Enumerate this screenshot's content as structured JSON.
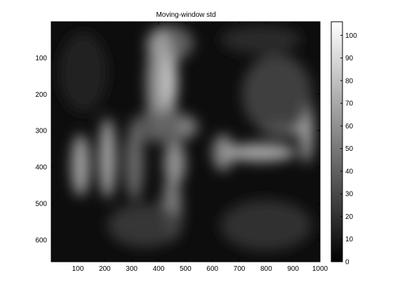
{
  "chart_data": {
    "type": "heatmap",
    "title": "Moving-window std",
    "colormap": "gray",
    "x_axis": {
      "range": [
        1,
        1000
      ],
      "ticks": [
        100,
        200,
        300,
        400,
        500,
        600,
        700,
        800,
        900,
        1000
      ],
      "grid": false
    },
    "y_axis": {
      "range": [
        1,
        660
      ],
      "reversed": true,
      "ticks": [
        100,
        200,
        300,
        400,
        500,
        600
      ],
      "grid": false
    },
    "colorbar": {
      "range": [
        0,
        106
      ],
      "ticks": [
        0,
        10,
        20,
        30,
        40,
        50,
        60,
        70,
        80,
        90,
        100
      ],
      "placement": "right"
    },
    "features": [
      {
        "kind": "ellipse",
        "cx": 440,
        "cy": 60,
        "rx": 90,
        "ry": 50,
        "value": 45
      },
      {
        "kind": "ellipse",
        "cx": 410,
        "cy": 170,
        "rx": 55,
        "ry": 150,
        "value": 70
      },
      {
        "kind": "ellipse",
        "cx": 440,
        "cy": 165,
        "rx": 30,
        "ry": 70,
        "value": 85
      },
      {
        "kind": "ellipse",
        "cx": 420,
        "cy": 290,
        "rx": 130,
        "ry": 45,
        "value": 40
      },
      {
        "kind": "ellipse",
        "cx": 210,
        "cy": 375,
        "rx": 30,
        "ry": 110,
        "value": 80
      },
      {
        "kind": "ellipse",
        "cx": 110,
        "cy": 395,
        "rx": 35,
        "ry": 85,
        "value": 75
      },
      {
        "kind": "ellipse",
        "cx": 310,
        "cy": 390,
        "rx": 35,
        "ry": 100,
        "value": 50
      },
      {
        "kind": "ellipse",
        "cx": 460,
        "cy": 390,
        "rx": 40,
        "ry": 60,
        "value": 70
      },
      {
        "kind": "ellipse",
        "cx": 500,
        "cy": 290,
        "rx": 40,
        "ry": 30,
        "value": 55
      },
      {
        "kind": "ellipse",
        "cx": 450,
        "cy": 510,
        "rx": 35,
        "ry": 90,
        "value": 60
      },
      {
        "kind": "ellipse",
        "cx": 640,
        "cy": 360,
        "rx": 40,
        "ry": 50,
        "value": 65
      },
      {
        "kind": "ellipse",
        "cx": 780,
        "cy": 360,
        "rx": 130,
        "ry": 25,
        "value": 80
      },
      {
        "kind": "ellipse",
        "cx": 870,
        "cy": 295,
        "rx": 90,
        "ry": 20,
        "value": 60
      },
      {
        "kind": "ellipse",
        "cx": 950,
        "cy": 300,
        "rx": 25,
        "ry": 90,
        "value": 75
      },
      {
        "kind": "ellipse",
        "cx": 840,
        "cy": 200,
        "rx": 130,
        "ry": 110,
        "value": 30
      },
      {
        "kind": "ellipse",
        "cx": 780,
        "cy": 50,
        "rx": 150,
        "ry": 40,
        "value": 20
      },
      {
        "kind": "ellipse",
        "cx": 120,
        "cy": 140,
        "rx": 90,
        "ry": 110,
        "value": 15
      },
      {
        "kind": "ellipse",
        "cx": 350,
        "cy": 560,
        "rx": 140,
        "ry": 60,
        "value": 25
      },
      {
        "kind": "ellipse",
        "cx": 800,
        "cy": 560,
        "rx": 170,
        "ry": 70,
        "value": 22
      }
    ]
  }
}
